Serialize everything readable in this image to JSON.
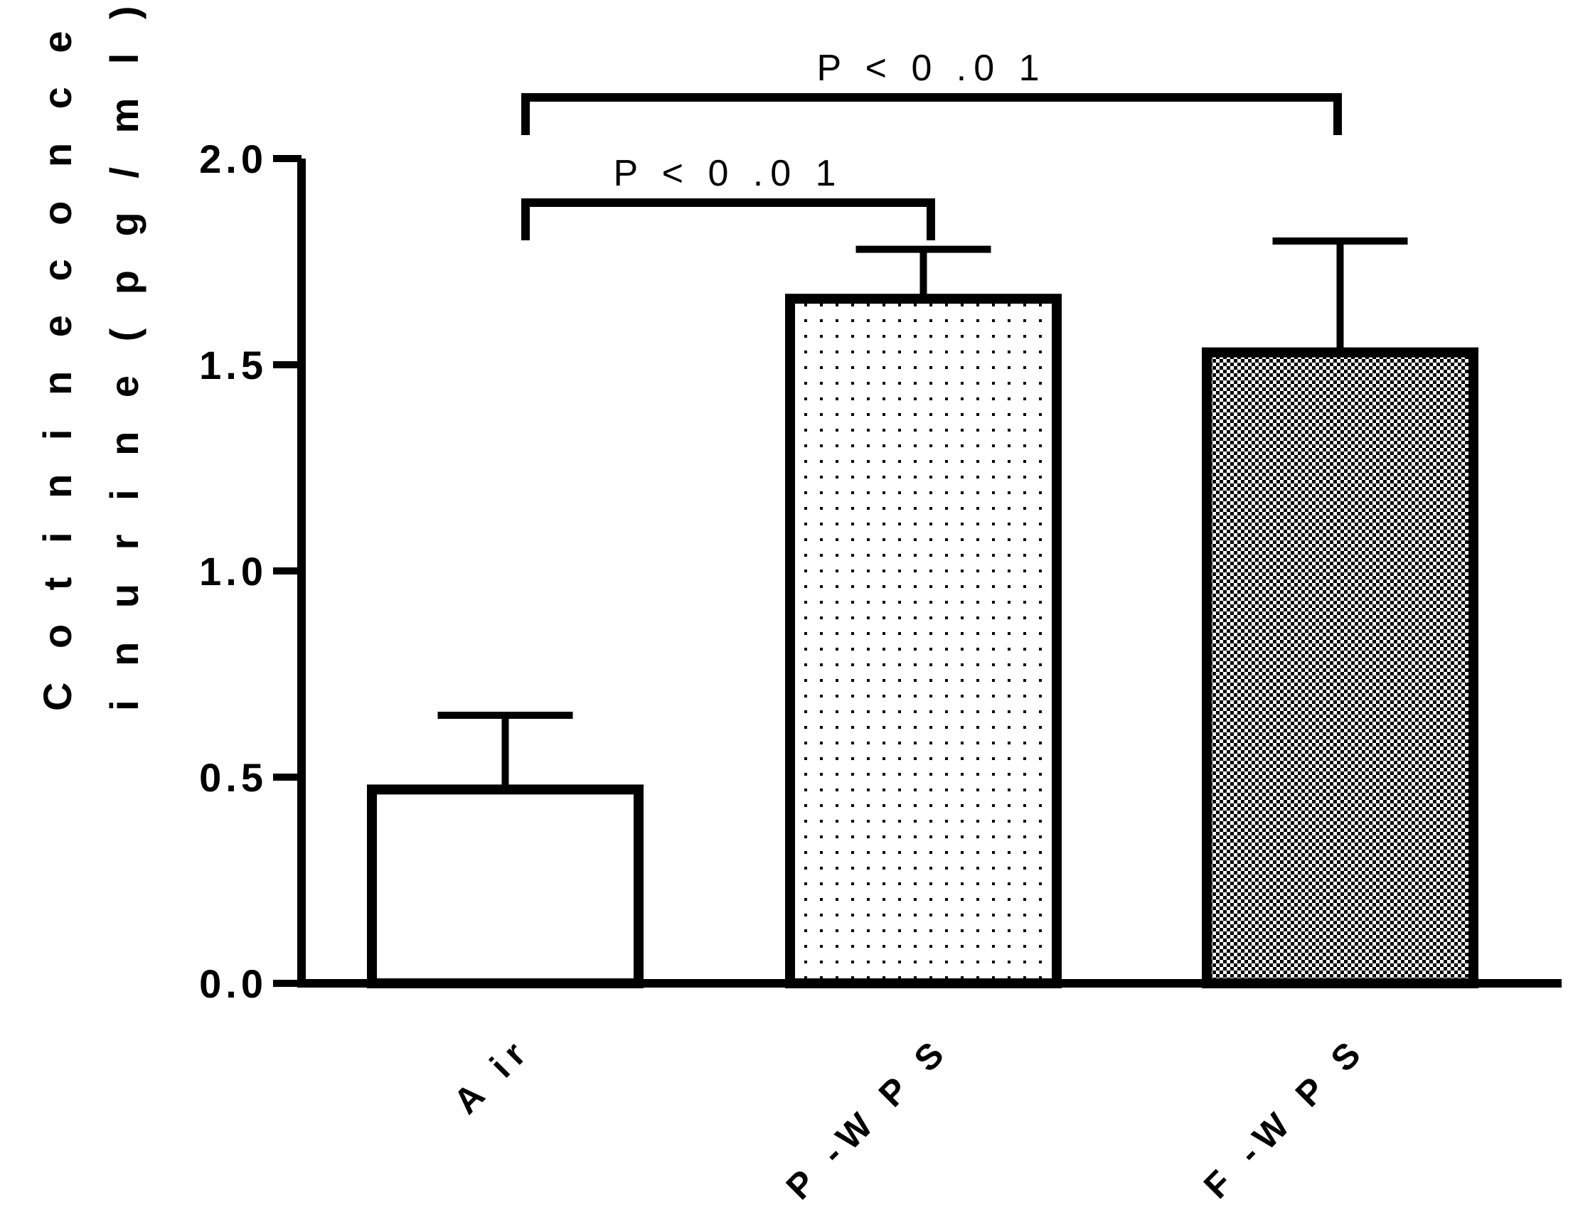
{
  "chart_data": {
    "type": "bar",
    "title": "",
    "xlabel": "",
    "ylabel": "Cotinine concentration in urine (pg/ml)",
    "ylabel_lines": [
      "Cotinine concentration",
      "in urine (pg/ml)"
    ],
    "ylabel_display": [
      "C o t i n i n e   c o n c e n t r a t i o n",
      "i n   u r i n e   ( p g / m l )"
    ],
    "categories": [
      "Air",
      "P-WPS",
      "AF-WPS"
    ],
    "category_display": [
      "A ir",
      "P -W P S",
      "A F -W P S"
    ],
    "values": [
      0.47,
      1.66,
      1.53
    ],
    "error_upper": [
      0.18,
      0.12,
      0.27
    ],
    "patterns": [
      "none",
      "dots",
      "checker"
    ],
    "ylim": [
      0.0,
      2.0
    ],
    "yticks": [
      0.0,
      0.5,
      1.0,
      1.5,
      2.0
    ],
    "ytick_labels": [
      "0.0",
      "0.5",
      "1.0",
      "1.5",
      "2.0"
    ],
    "grid": false,
    "legend": "none",
    "significance": [
      {
        "from": 0,
        "to": 2,
        "label": "P < 0.01",
        "label_display": "P < 0 .0 1"
      },
      {
        "from": 0,
        "to": 1,
        "label": "P < 0.01",
        "label_display": "P < 0 .0 1"
      }
    ],
    "colors": {
      "bar_stroke": "#000000",
      "bar_fill": "#ffffff",
      "pattern_ink": "#000000"
    }
  }
}
